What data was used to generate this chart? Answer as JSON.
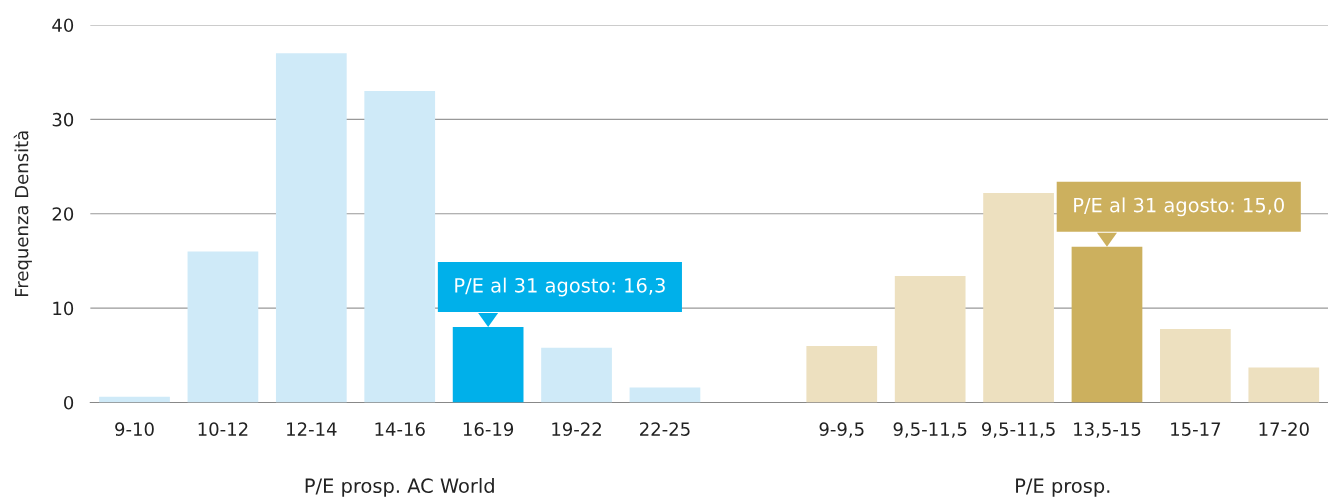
{
  "chart_data": {
    "type": "bar",
    "categories": [
      "9-10",
      "10-12",
      "12-14",
      "14-16",
      "16-19",
      "19-22",
      "22-25",
      null,
      "9-9,5",
      "9,5-11,5",
      "9,5-11,5",
      "13,5-15",
      "15-17",
      "17-20"
    ],
    "values": [
      0.6,
      16,
      37,
      33,
      8,
      5.8,
      1.6,
      null,
      6,
      13.4,
      22.2,
      16.5,
      7.8,
      3.7
    ],
    "colors": [
      "#cfeaf8",
      "#cfeaf8",
      "#cfeaf8",
      "#cfeaf8",
      "#00b0ea",
      "#cfeaf8",
      "#cfeaf8",
      "#cfeaf8",
      "#ede0bf",
      "#ede0bf",
      "#ede0bf",
      "#ccb05e",
      "#ede0bf",
      "#ede0bf"
    ],
    "ylabel": "Frequenza Densità",
    "ylim": [
      0,
      40
    ],
    "yticks": [
      0,
      10,
      20,
      30,
      40
    ],
    "grid": "y",
    "annotations": [
      {
        "text": "P/E al 31 agosto: 16,3",
        "x": "16-19",
        "y": 8
      },
      {
        "text": "P/E al 31 agosto: 15,0",
        "x": "13,5-15",
        "y": 16.5
      },
      "P/E prosp. AC World",
      "P/E prosp."
    ]
  }
}
